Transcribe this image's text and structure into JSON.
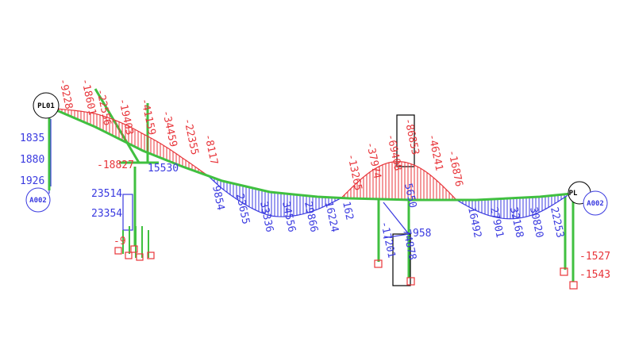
{
  "nodes": [
    {
      "label": "PL01"
    },
    {
      "label": "A002"
    },
    {
      "label": "PL"
    },
    {
      "label": "A002"
    }
  ],
  "negative_moments": [
    -9228,
    -18601,
    -22556,
    -19403,
    -41159,
    -34459,
    -22355,
    -8117,
    -13265,
    -37974,
    -69408,
    -86853,
    -46241,
    -16876
  ],
  "negative_labels_flat": [
    -18827,
    -1527,
    -1543,
    -9
  ],
  "positive_moments": [
    9854,
    23655,
    33336,
    34556,
    29866,
    16224,
    162,
    16492,
    27901,
    32168,
    30820,
    22253,
    -17201,
    74878,
    5650
  ],
  "positive_labels_flat": [
    1835,
    1880,
    1926,
    23514,
    23354,
    15530,
    958
  ]
}
